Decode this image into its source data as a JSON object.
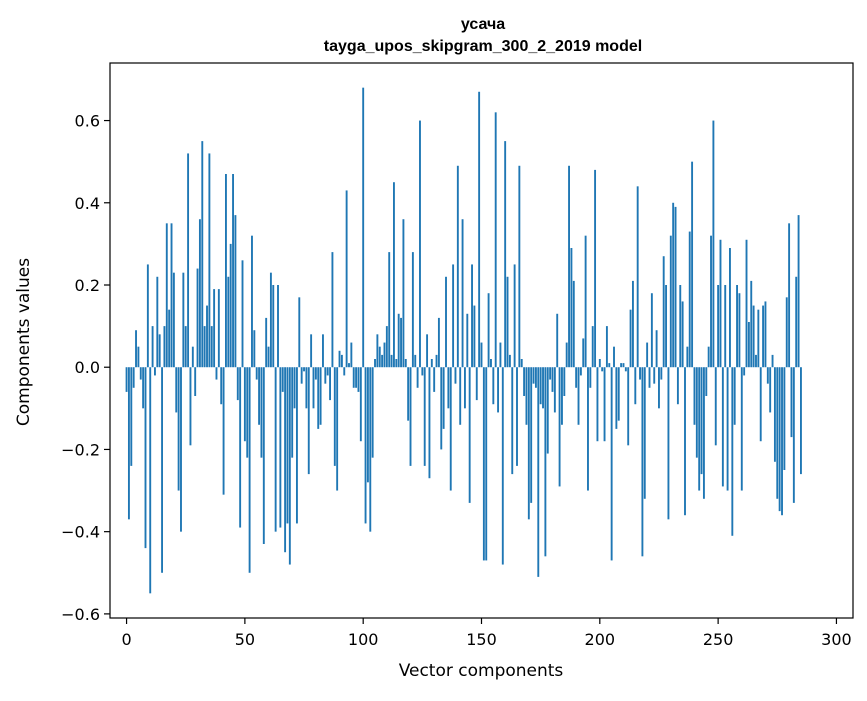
{
  "chart_data": {
    "type": "bar",
    "title": "усача",
    "subtitle": "tayga_upos_skipgram_300_2_2019 model",
    "xlabel": "Vector components",
    "ylabel": "Components values",
    "xlim": [
      -7,
      307
    ],
    "ylim": [
      -0.61,
      0.74
    ],
    "xticks": [
      0,
      50,
      100,
      150,
      200,
      250,
      300
    ],
    "yticks": [
      -0.6,
      -0.4,
      -0.2,
      0.0,
      0.2,
      0.4,
      0.6
    ],
    "xtick_labels": [
      "0",
      "50",
      "100",
      "150",
      "200",
      "250",
      "300"
    ],
    "ytick_labels": [
      "−0.6",
      "−0.4",
      "−0.2",
      "0.0",
      "0.2",
      "0.4",
      "0.6"
    ],
    "grid": false,
    "bar_color": "#1f77b4",
    "values": [
      -0.06,
      -0.37,
      -0.24,
      -0.05,
      0.09,
      0.05,
      -0.03,
      -0.1,
      -0.44,
      0.25,
      -0.55,
      0.1,
      -0.02,
      0.22,
      0.08,
      -0.5,
      0.1,
      0.35,
      0.14,
      0.35,
      0.23,
      -0.11,
      -0.3,
      -0.4,
      0.23,
      0.1,
      0.52,
      -0.19,
      0.05,
      -0.07,
      0.24,
      0.36,
      0.55,
      0.1,
      0.15,
      0.52,
      0.1,
      0.19,
      -0.03,
      0.19,
      -0.09,
      -0.31,
      0.47,
      0.22,
      0.3,
      0.47,
      0.37,
      -0.08,
      -0.39,
      0.26,
      -0.18,
      -0.22,
      -0.5,
      0.32,
      0.09,
      -0.03,
      -0.14,
      -0.22,
      -0.43,
      0.12,
      0.05,
      0.23,
      0.2,
      -0.4,
      0.2,
      -0.39,
      -0.06,
      -0.45,
      -0.38,
      -0.48,
      -0.22,
      -0.1,
      -0.38,
      0.17,
      -0.04,
      -0.01,
      -0.1,
      -0.26,
      0.08,
      -0.1,
      -0.03,
      -0.15,
      -0.14,
      0.08,
      -0.04,
      -0.02,
      -0.08,
      0.28,
      -0.24,
      -0.3,
      0.04,
      0.03,
      -0.02,
      0.43,
      0.01,
      0.06,
      -0.05,
      -0.05,
      -0.06,
      -0.18,
      0.68,
      -0.38,
      -0.28,
      -0.4,
      -0.22,
      0.02,
      0.08,
      0.05,
      0.03,
      0.06,
      0.1,
      0.28,
      0.03,
      0.45,
      0.02,
      0.13,
      0.12,
      0.36,
      0.02,
      -0.13,
      -0.24,
      0.28,
      0.03,
      -0.05,
      0.6,
      -0.02,
      -0.24,
      0.08,
      -0.27,
      0.02,
      -0.06,
      0.03,
      0.12,
      -0.2,
      -0.15,
      0.22,
      -0.1,
      -0.3,
      0.25,
      -0.04,
      0.49,
      -0.14,
      0.36,
      -0.1,
      0.13,
      -0.33,
      0.25,
      0.15,
      -0.08,
      0.67,
      0.06,
      -0.47,
      -0.47,
      0.18,
      0.02,
      -0.09,
      0.62,
      -0.11,
      0.06,
      -0.48,
      0.55,
      0.22,
      0.03,
      -0.26,
      0.25,
      -0.24,
      0.49,
      0.02,
      -0.07,
      -0.14,
      -0.37,
      -0.33,
      -0.04,
      -0.05,
      -0.51,
      -0.09,
      -0.1,
      -0.46,
      -0.21,
      -0.03,
      -0.06,
      -0.11,
      0.13,
      -0.29,
      -0.14,
      -0.07,
      0.06,
      0.49,
      0.29,
      0.21,
      -0.05,
      -0.14,
      -0.02,
      0.07,
      0.32,
      -0.3,
      -0.05,
      0.1,
      0.48,
      -0.18,
      0.02,
      -0.01,
      -0.18,
      0.1,
      0.01,
      -0.47,
      0.05,
      -0.15,
      -0.13,
      0.01,
      0.01,
      -0.01,
      -0.19,
      0.14,
      0.21,
      -0.09,
      0.44,
      -0.03,
      -0.46,
      -0.32,
      0.06,
      -0.05,
      0.18,
      -0.04,
      0.09,
      -0.1,
      -0.03,
      0.27,
      0.2,
      -0.37,
      0.32,
      0.4,
      0.39,
      -0.09,
      0.2,
      0.16,
      -0.36,
      0.05,
      0.33,
      0.5,
      -0.14,
      -0.22,
      -0.3,
      -0.26,
      -0.32,
      -0.07,
      0.05,
      0.32,
      0.6,
      -0.19,
      0.2,
      0.31,
      -0.29,
      0.2,
      -0.3,
      0.29,
      -0.41,
      -0.14,
      0.2,
      0.18,
      -0.3,
      -0.02,
      0.31,
      0.11,
      0.21,
      0.15,
      0.03,
      0.14,
      -0.18,
      0.15,
      0.16,
      -0.04,
      -0.11,
      0.03,
      -0.23,
      -0.32,
      -0.35,
      -0.36,
      -0.25,
      0.17,
      0.35,
      -0.17,
      -0.33,
      0.22,
      0.37,
      -0.26
    ]
  }
}
